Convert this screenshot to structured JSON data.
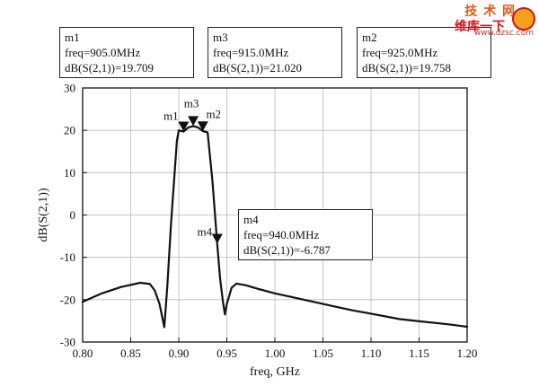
{
  "chart_data": {
    "type": "line",
    "xlabel": "freq, GHz",
    "ylabel": "dB(S(2,1))",
    "xlim": [
      0.8,
      1.2
    ],
    "ylim": [
      -30,
      30
    ],
    "x_ticks": [
      "0.80",
      "0.85",
      "0.90",
      "0.95",
      "1.00",
      "1.05",
      "1.10",
      "1.15",
      "1.20"
    ],
    "y_ticks": [
      "30",
      "20",
      "10",
      "0",
      "-10",
      "-20",
      "-30"
    ],
    "grid": true,
    "series": [
      {
        "x": [
          0.8,
          0.82,
          0.84,
          0.86,
          0.87,
          0.875,
          0.88,
          0.885,
          0.888,
          0.892,
          0.898,
          0.9,
          0.905,
          0.91,
          0.915,
          0.92,
          0.925,
          0.93,
          0.935,
          0.94,
          0.943,
          0.946,
          0.948,
          0.95,
          0.955,
          0.96,
          0.97,
          0.98,
          1.0,
          1.03,
          1.05,
          1.08,
          1.1,
          1.13,
          1.15,
          1.18,
          1.2
        ],
        "y": [
          -20.5,
          -18.5,
          -17.0,
          -16.0,
          -16.3,
          -17.8,
          -21.0,
          -26.5,
          -17.0,
          -2.0,
          17.5,
          20.0,
          19.7,
          20.7,
          21.0,
          20.7,
          19.8,
          19.5,
          8.0,
          -6.8,
          -15.0,
          -20.5,
          -23.5,
          -21.0,
          -17.2,
          -16.2,
          -16.6,
          -17.3,
          -18.5,
          -20.0,
          -21.0,
          -22.5,
          -23.3,
          -24.6,
          -25.1,
          -25.8,
          -26.4
        ]
      }
    ],
    "markers": [
      {
        "id": "m1",
        "label": "m1",
        "x": 0.905,
        "y": 19.709,
        "line1": "m1",
        "line2": "freq=905.0MHz",
        "line3": "dB(S(2,1))=19.709"
      },
      {
        "id": "m3",
        "label": "m3",
        "x": 0.915,
        "y": 21.02,
        "line1": "m3",
        "line2": "freq=915.0MHz",
        "line3": "dB(S(2,1))=21.020"
      },
      {
        "id": "m2",
        "label": "m2",
        "x": 0.925,
        "y": 19.758,
        "line1": "m2",
        "line2": "freq=925.0MHz",
        "line3": "dB(S(2,1))=19.758"
      },
      {
        "id": "m4",
        "label": "m4",
        "x": 0.94,
        "y": -6.787,
        "line1": "m4",
        "line2": "freq=940.0MHz",
        "line3": "dB(S(2,1))=-6.787"
      }
    ]
  },
  "watermark": {
    "brand_top": "技 术 网",
    "brand_cn": "维库一下",
    "url": "www.dzsc.com"
  }
}
